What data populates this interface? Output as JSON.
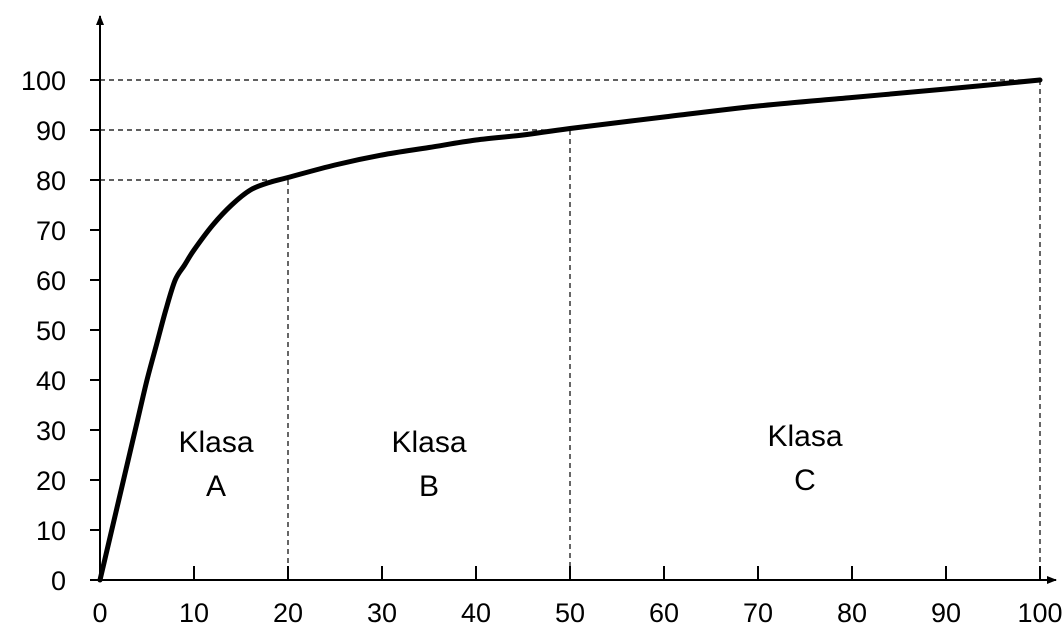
{
  "chart_data": {
    "type": "line",
    "title": "",
    "xlabel": "",
    "ylabel": "",
    "xlim": [
      0,
      100
    ],
    "ylim": [
      0,
      100
    ],
    "x_ticks": [
      "0",
      "10",
      "20",
      "30",
      "40",
      "50",
      "60",
      "70",
      "80",
      "90",
      "100"
    ],
    "y_ticks": [
      "0",
      "10",
      "20",
      "30",
      "40",
      "50",
      "60",
      "70",
      "80",
      "90",
      "100"
    ],
    "series": [
      {
        "x": [
          0,
          1,
          2,
          3,
          4,
          5,
          6,
          7,
          8,
          9,
          10,
          12,
          14,
          16,
          18,
          20,
          25,
          30,
          35,
          40,
          45,
          50,
          60,
          70,
          80,
          90,
          100
        ],
        "y": [
          0,
          8,
          16,
          24,
          32,
          40,
          47,
          54,
          60,
          63,
          66,
          71,
          75,
          78,
          79.5,
          80.5,
          83,
          85,
          86.5,
          88,
          89,
          90.3,
          92.6,
          94.8,
          96.5,
          98.2,
          100
        ]
      }
    ],
    "reference_lines": [
      {
        "x": 20,
        "y": 80
      },
      {
        "x": 50,
        "y": 90
      },
      {
        "x": 100,
        "y": 100
      }
    ],
    "regions": [
      {
        "line1": "Klasa",
        "line2": "A",
        "x_center": 10
      },
      {
        "line1": "Klasa",
        "line2": "B",
        "x_center": 35
      },
      {
        "line1": "Klasa",
        "line2": "C",
        "x_center": 75
      }
    ],
    "grid": false,
    "legend": "none",
    "colors": {
      "curve": "#000000",
      "axes": "#000000",
      "guides": "#000000"
    }
  }
}
